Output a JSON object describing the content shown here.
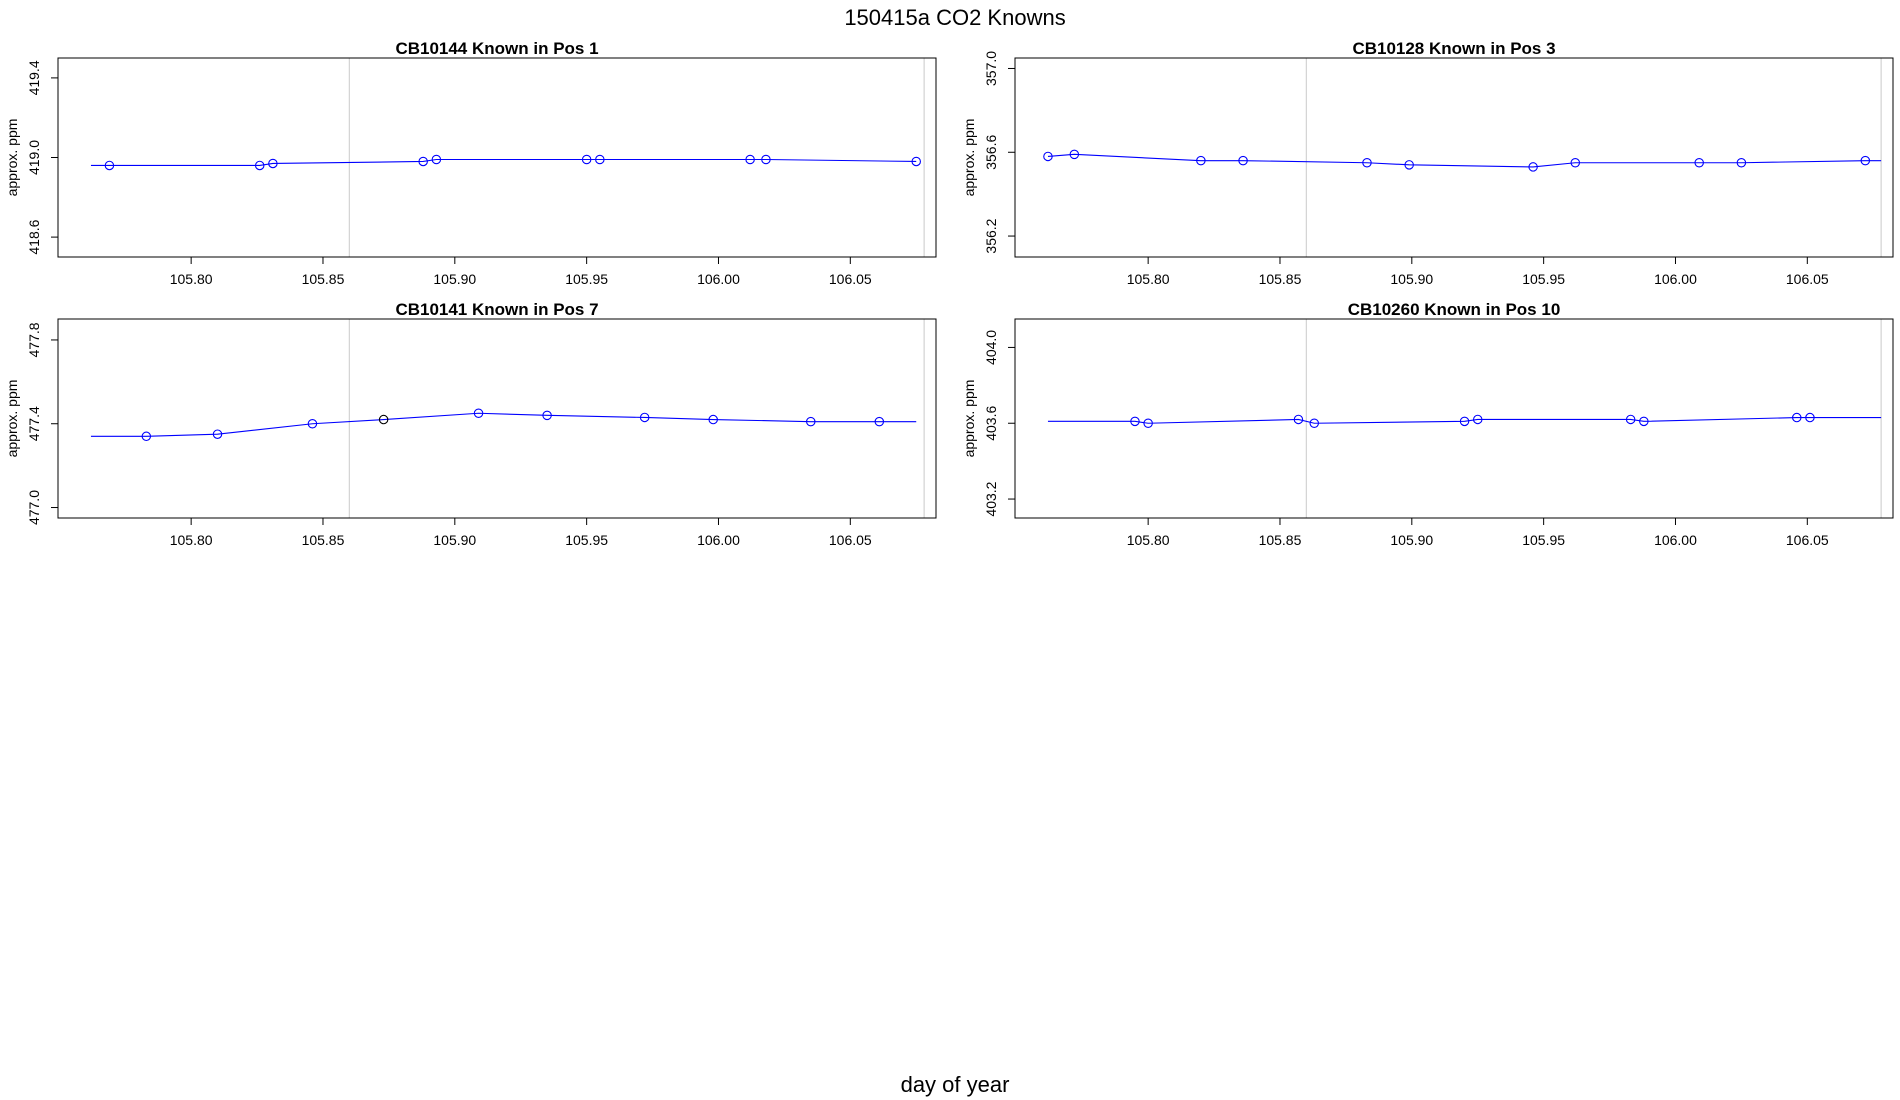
{
  "figure": {
    "title": "150415a   CO2 Knowns",
    "xlabel": "day of year"
  },
  "colors": {
    "series": "#0000ff",
    "highlight_point": "#000000",
    "reference_line": "#d3d3d3",
    "frame": "#000000"
  },
  "chart_data": [
    {
      "type": "line",
      "title": "CB10144    Known in Pos 1",
      "ylabel": "approx. ppm",
      "xlim": [
        105.7495,
        106.0825
      ],
      "ylim": [
        418.5,
        419.5
      ],
      "xticks": [
        "105.80",
        "105.85",
        "105.90",
        "105.95",
        "106.00",
        "106.05"
      ],
      "yticks": [
        "418.6",
        "419.0",
        "419.4"
      ],
      "vlines": [
        105.86,
        106.078
      ],
      "line_x": [
        105.762,
        105.769,
        105.826,
        105.831,
        105.888,
        105.893,
        105.95,
        105.955,
        106.012,
        106.018,
        106.075
      ],
      "line_y": [
        418.96,
        418.96,
        418.96,
        418.97,
        418.98,
        418.99,
        418.99,
        418.99,
        418.99,
        418.99,
        418.98
      ],
      "points_x": [
        105.769,
        105.826,
        105.831,
        105.888,
        105.893,
        105.95,
        105.955,
        106.012,
        106.018,
        106.075
      ],
      "points_y": [
        418.96,
        418.96,
        418.97,
        418.98,
        418.99,
        418.99,
        418.99,
        418.99,
        418.99,
        418.98
      ],
      "highlight_index": -1
    },
    {
      "type": "line",
      "title": "CB10128    Known in Pos 3",
      "ylabel": "approx. ppm",
      "xlim": [
        105.7495,
        106.0825
      ],
      "ylim": [
        356.1,
        357.05
      ],
      "xticks": [
        "105.80",
        "105.85",
        "105.90",
        "105.95",
        "106.00",
        "106.05"
      ],
      "yticks": [
        "356.2",
        "356.6",
        "357.0"
      ],
      "vlines": [
        105.86,
        106.078
      ],
      "line_x": [
        105.762,
        105.772,
        105.82,
        105.836,
        105.883,
        105.899,
        105.946,
        105.962,
        106.009,
        106.025,
        106.072,
        106.078
      ],
      "line_y": [
        356.58,
        356.59,
        356.56,
        356.56,
        356.55,
        356.54,
        356.53,
        356.55,
        356.55,
        356.55,
        356.56,
        356.56
      ],
      "points_x": [
        105.762,
        105.772,
        105.82,
        105.836,
        105.883,
        105.899,
        105.946,
        105.962,
        106.009,
        106.025,
        106.072
      ],
      "points_y": [
        356.58,
        356.59,
        356.56,
        356.56,
        356.55,
        356.54,
        356.53,
        356.55,
        356.55,
        356.55,
        356.56
      ],
      "highlight_index": -1
    },
    {
      "type": "line",
      "title": "CB10141    Known in Pos 7",
      "ylabel": "approx. ppm",
      "xlim": [
        105.7495,
        106.0825
      ],
      "ylim": [
        476.95,
        477.9
      ],
      "xticks": [
        "105.80",
        "105.85",
        "105.90",
        "105.95",
        "106.00",
        "106.05"
      ],
      "yticks": [
        "477.0",
        "477.4",
        "477.8"
      ],
      "vlines": [
        105.86,
        106.078
      ],
      "line_x": [
        105.762,
        105.783,
        105.81,
        105.846,
        105.873,
        105.909,
        105.935,
        105.972,
        105.998,
        106.035,
        106.061,
        106.075
      ],
      "line_y": [
        477.34,
        477.34,
        477.35,
        477.4,
        477.42,
        477.45,
        477.44,
        477.43,
        477.42,
        477.41,
        477.41,
        477.41
      ],
      "points_x": [
        105.783,
        105.81,
        105.846,
        105.873,
        105.909,
        105.935,
        105.972,
        105.998,
        106.035,
        106.061
      ],
      "points_y": [
        477.34,
        477.35,
        477.4,
        477.42,
        477.45,
        477.44,
        477.43,
        477.42,
        477.41,
        477.41
      ],
      "highlight_index": 3
    },
    {
      "type": "line",
      "title": "CB10260    Known in Pos 10",
      "ylabel": "approx. ppm",
      "xlim": [
        105.7495,
        106.0825
      ],
      "ylim": [
        403.1,
        404.15
      ],
      "xticks": [
        "105.80",
        "105.85",
        "105.90",
        "105.95",
        "106.00",
        "106.05"
      ],
      "yticks": [
        "403.2",
        "403.6",
        "404.0"
      ],
      "vlines": [
        105.86,
        106.078
      ],
      "line_x": [
        105.762,
        105.795,
        105.8,
        105.857,
        105.863,
        105.92,
        105.925,
        105.983,
        105.988,
        106.046,
        106.051,
        106.078
      ],
      "line_y": [
        403.61,
        403.61,
        403.6,
        403.62,
        403.6,
        403.61,
        403.62,
        403.62,
        403.61,
        403.63,
        403.63,
        403.63
      ],
      "points_x": [
        105.795,
        105.8,
        105.857,
        105.863,
        105.92,
        105.925,
        105.983,
        105.988,
        106.046,
        106.051
      ],
      "points_y": [
        403.61,
        403.6,
        403.62,
        403.6,
        403.61,
        403.62,
        403.62,
        403.61,
        403.63,
        403.63
      ],
      "highlight_index": -1
    }
  ]
}
